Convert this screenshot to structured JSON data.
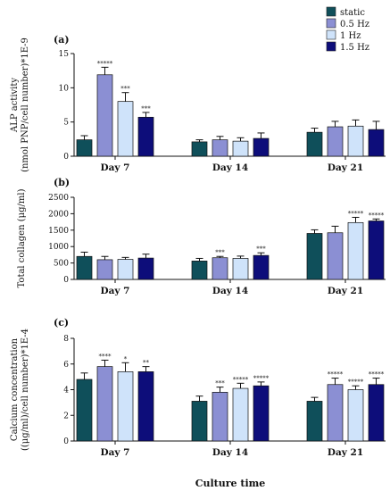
{
  "legend": [
    {
      "label": "static",
      "color": "#0f4f5a"
    },
    {
      "label": "0.5 Hz",
      "color": "#8b8fd3"
    },
    {
      "label": "1 Hz",
      "color": "#cfe3fa"
    },
    {
      "label": "1.5 Hz",
      "color": "#0d0d7a"
    }
  ],
  "xlabel": "Culture time",
  "chart_data": [
    {
      "type": "bar",
      "panel_label": "(a)",
      "ylabel_lines": [
        "ALP activity",
        "(nmol PNP/cell number)*1E-9"
      ],
      "ylim": [
        0,
        15
      ],
      "yticks": [
        0,
        5,
        10,
        15
      ],
      "categories": [
        "Day 7",
        "Day 14",
        "Day 21"
      ],
      "series": [
        {
          "name": "static",
          "values": [
            2.4,
            2.1,
            3.5
          ],
          "errors": [
            0.6,
            0.3,
            0.6
          ],
          "stars": [
            "",
            "",
            ""
          ]
        },
        {
          "name": "0.5 Hz",
          "values": [
            11.9,
            2.4,
            4.3
          ],
          "errors": [
            1.1,
            0.5,
            0.8
          ],
          "stars": [
            "*****",
            "",
            ""
          ]
        },
        {
          "name": "1 Hz",
          "values": [
            8.0,
            2.2,
            4.4
          ],
          "errors": [
            1.3,
            0.5,
            0.9
          ],
          "stars": [
            "***",
            "",
            ""
          ]
        },
        {
          "name": "1.5 Hz",
          "values": [
            5.7,
            2.6,
            3.9
          ],
          "errors": [
            0.7,
            0.8,
            1.2
          ],
          "stars": [
            "***",
            "",
            ""
          ]
        }
      ]
    },
    {
      "type": "bar",
      "panel_label": "(b)",
      "ylabel_lines": [
        "Total collagen (μg/ml)"
      ],
      "ylim": [
        0,
        2500
      ],
      "yticks": [
        0,
        500,
        1000,
        1500,
        2000,
        2500
      ],
      "categories": [
        "Day 7",
        "Day 14",
        "Day 21"
      ],
      "series": [
        {
          "name": "static",
          "values": [
            700,
            560,
            1400
          ],
          "errors": [
            130,
            80,
            110
          ],
          "stars": [
            "",
            "",
            ""
          ]
        },
        {
          "name": "0.5 Hz",
          "values": [
            600,
            660,
            1420
          ],
          "errors": [
            100,
            40,
            200
          ],
          "stars": [
            "",
            "***",
            ""
          ]
        },
        {
          "name": "1 Hz",
          "values": [
            610,
            640,
            1730
          ],
          "errors": [
            60,
            70,
            160
          ],
          "stars": [
            "",
            "",
            "*****"
          ]
        },
        {
          "name": "1.5 Hz",
          "values": [
            650,
            730,
            1780
          ],
          "errors": [
            120,
            80,
            60
          ],
          "stars": [
            "",
            "***",
            "*****"
          ]
        }
      ]
    },
    {
      "type": "bar",
      "panel_label": "(c)",
      "ylabel_lines": [
        "Calcium concentration",
        "((μg/ml)/cell number)*1E-4"
      ],
      "ylim": [
        0,
        8
      ],
      "yticks": [
        0,
        2,
        4,
        6,
        8
      ],
      "categories": [
        "Day 7",
        "Day 14",
        "Day 21"
      ],
      "series": [
        {
          "name": "static",
          "values": [
            4.8,
            3.1,
            3.1
          ],
          "errors": [
            0.5,
            0.4,
            0.3
          ],
          "stars": [
            "",
            "",
            ""
          ]
        },
        {
          "name": "0.5 Hz",
          "values": [
            5.8,
            3.8,
            4.4
          ],
          "errors": [
            0.5,
            0.4,
            0.5
          ],
          "stars": [
            "****",
            "***",
            "*****"
          ]
        },
        {
          "name": "1 Hz",
          "values": [
            5.4,
            4.1,
            4.0
          ],
          "errors": [
            0.7,
            0.4,
            0.3
          ],
          "stars": [
            "*",
            "*****",
            "*****"
          ]
        },
        {
          "name": "1.5 Hz",
          "values": [
            5.4,
            4.3,
            4.4
          ],
          "errors": [
            0.4,
            0.3,
            0.5
          ],
          "stars": [
            "**",
            "*****",
            "*****"
          ]
        }
      ]
    }
  ]
}
